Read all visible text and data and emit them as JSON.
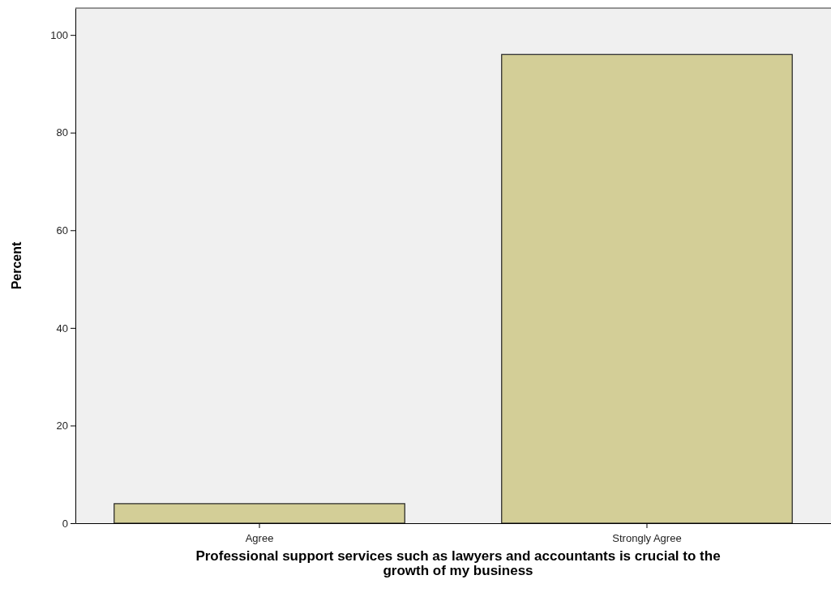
{
  "chart_data": {
    "type": "bar",
    "xlabel": "Professional support services such as lawyers and accountants is crucial to the growth of my business",
    "ylabel": "Percent",
    "categories": [
      "Agree",
      "Strongly Agree"
    ],
    "values": [
      4,
      96
    ],
    "color": "#d3ce97",
    "ylim": [
      0,
      105.5
    ],
    "yticks": [
      0,
      20,
      40,
      60,
      80,
      100
    ],
    "grid": false
  }
}
